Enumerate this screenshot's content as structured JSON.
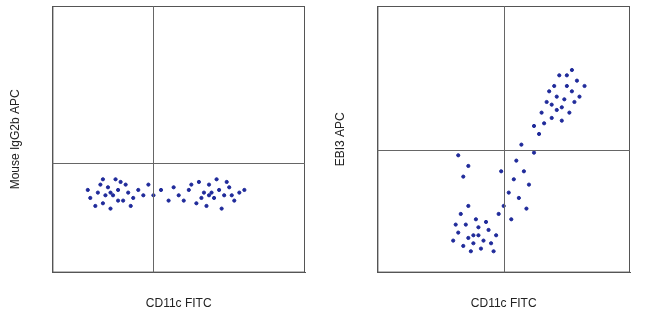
{
  "chart_data": [
    {
      "type": "scatter",
      "x_label": "CD11c FITC",
      "y_label": "Mouse IgG2b APC",
      "xlim": [
        0,
        100
      ],
      "ylim": [
        0,
        100
      ],
      "tick_labels": false,
      "grid": false,
      "color": "#1f2a9a",
      "quadrant_x": 40,
      "quadrant_y": 41,
      "x": [
        15,
        18,
        20,
        22,
        24,
        26,
        28,
        30,
        19,
        23,
        25,
        21,
        27,
        17,
        29,
        32,
        34,
        36,
        14,
        23,
        26,
        31,
        20,
        40,
        43,
        46,
        38,
        50,
        54,
        57,
        60,
        62,
        64,
        66,
        68,
        70,
        72,
        74,
        58,
        61,
        63,
        65,
        67,
        55,
        59,
        69,
        71,
        52,
        48,
        76,
        62
      ],
      "values": [
        28,
        30,
        26,
        32,
        29,
        31,
        27,
        30,
        33,
        24,
        35,
        29,
        34,
        25,
        33,
        28,
        31,
        29,
        31,
        30,
        27,
        25,
        35,
        29,
        31,
        27,
        33,
        29,
        31,
        26,
        30,
        33,
        28,
        31,
        29,
        32,
        27,
        30,
        34,
        25,
        30,
        35,
        24,
        33,
        28,
        34,
        29,
        27,
        32,
        31,
        29
      ]
    },
    {
      "type": "scatter",
      "x_label": "CD11c FITC",
      "y_label": "EBI3 APC",
      "xlim": [
        0,
        100
      ],
      "ylim": [
        0,
        100
      ],
      "tick_labels": false,
      "grid": false,
      "color": "#1f2a9a",
      "quadrant_x": 50,
      "quadrant_y": 46,
      "x": [
        30,
        32,
        34,
        36,
        38,
        40,
        42,
        44,
        35,
        37,
        39,
        41,
        43,
        33,
        45,
        47,
        36,
        40,
        38,
        48,
        46,
        31,
        34,
        32,
        36,
        50,
        52,
        54,
        56,
        55,
        58,
        53,
        57,
        60,
        49,
        62,
        59,
        62,
        65,
        67,
        69,
        71,
        73,
        75,
        77,
        79,
        72,
        70,
        74,
        76,
        78,
        68,
        66,
        80,
        73,
        71,
        75,
        64,
        82,
        77,
        69
      ],
      "values": [
        12,
        15,
        10,
        13,
        11,
        14,
        12,
        16,
        18,
        8,
        20,
        9,
        19,
        22,
        11,
        14,
        25,
        17,
        14,
        22,
        8,
        18,
        36,
        44,
        40,
        25,
        30,
        35,
        28,
        42,
        38,
        20,
        48,
        33,
        38,
        45,
        24,
        55,
        60,
        64,
        58,
        66,
        62,
        70,
        68,
        72,
        74,
        70,
        65,
        60,
        64,
        68,
        56,
        66,
        57,
        61,
        74,
        52,
        70,
        76,
        63
      ]
    }
  ]
}
